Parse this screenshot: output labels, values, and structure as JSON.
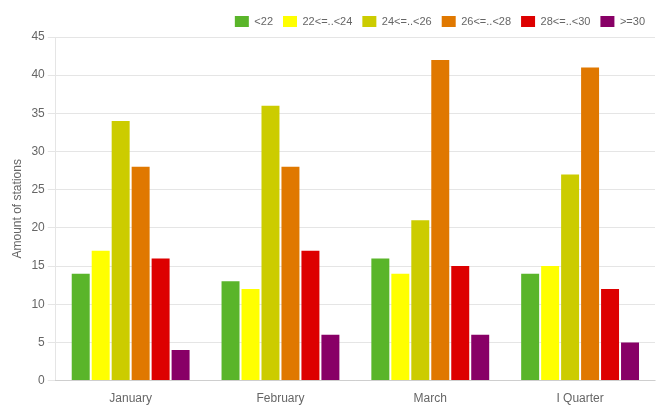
{
  "chart_data": {
    "type": "bar",
    "categories": [
      "January",
      "February",
      "March",
      "I Quarter"
    ],
    "series": [
      {
        "name": "<22",
        "color": "#5ab52a",
        "values": [
          14,
          13,
          16,
          14
        ]
      },
      {
        "name": "22<=..<24",
        "color": "#ffff00",
        "values": [
          17,
          12,
          14,
          15
        ]
      },
      {
        "name": "24<=..<26",
        "color": "#cccc00",
        "values": [
          34,
          36,
          21,
          27
        ]
      },
      {
        "name": "26<=..<28",
        "color": "#e07800",
        "values": [
          28,
          28,
          42,
          41
        ]
      },
      {
        "name": "28<=..<30",
        "color": "#dd0000",
        "values": [
          16,
          17,
          15,
          12
        ]
      },
      {
        "name": ">=30",
        "color": "#880066",
        "values": [
          4,
          6,
          6,
          5
        ]
      }
    ],
    "ylabel": "Amount of stations",
    "ylim": [
      0,
      45
    ],
    "yticks": [
      0,
      5,
      10,
      15,
      20,
      25,
      30,
      35,
      40,
      45
    ],
    "grid": true,
    "legend": "upper right"
  }
}
